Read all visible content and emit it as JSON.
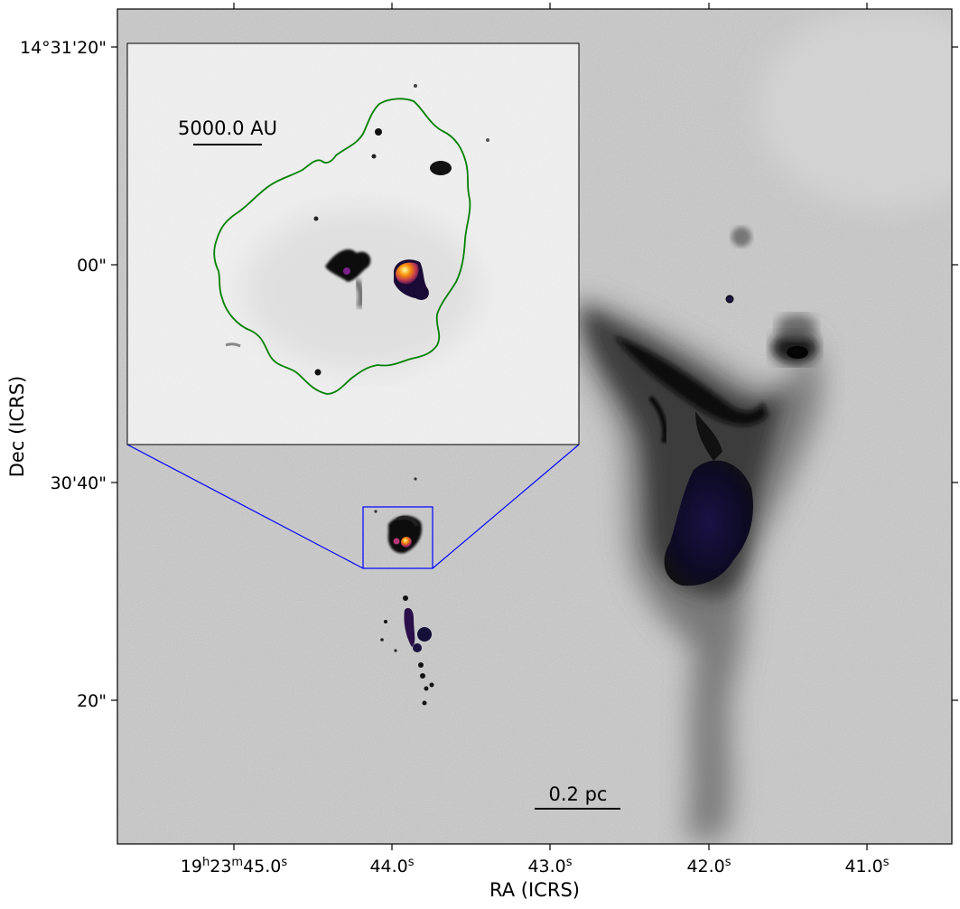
{
  "axes": {
    "xlabel": "RA (ICRS)",
    "ylabel": "Dec (ICRS)"
  },
  "ra_ticks": [
    {
      "h": "19",
      "m": "23",
      "s": "45.0"
    },
    {
      "s": "44.0"
    },
    {
      "s": "43.0"
    },
    {
      "s": "42.0"
    },
    {
      "s": "41.0"
    }
  ],
  "dec_ticks": [
    "14°31'20\"",
    "00\"",
    "30'40\"",
    "20\""
  ],
  "main_scalebar": {
    "label": "0.2 pc"
  },
  "inset": {
    "scalebar": {
      "label": "5000.0 AU"
    },
    "contour_color": "#008000",
    "zoom_box_color": "#0000ff"
  },
  "colors": {
    "background_colormap": "greys",
    "emission_colormap": "inferno"
  }
}
